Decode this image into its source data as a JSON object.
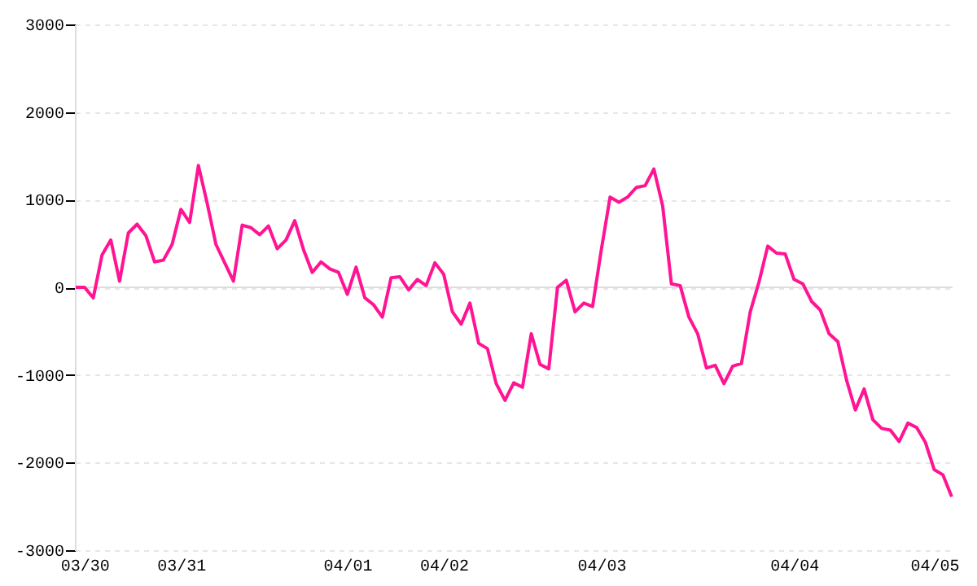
{
  "chart_data": {
    "type": "line",
    "categories": [
      null,
      "03/30",
      null,
      null,
      null,
      null,
      null,
      null,
      null,
      null,
      null,
      null,
      "03/31",
      null,
      null,
      null,
      null,
      null,
      null,
      null,
      null,
      null,
      null,
      null,
      null,
      null,
      null,
      null,
      null,
      null,
      null,
      "04/01",
      null,
      null,
      null,
      null,
      null,
      null,
      null,
      null,
      null,
      null,
      "04/02",
      null,
      null,
      null,
      null,
      null,
      null,
      null,
      null,
      null,
      null,
      null,
      null,
      null,
      null,
      null,
      null,
      null,
      "04/03",
      null,
      null,
      null,
      null,
      null,
      null,
      null,
      null,
      null,
      null,
      null,
      null,
      null,
      null,
      null,
      null,
      null,
      null,
      null,
      null,
      null,
      "04/04",
      null,
      null,
      null,
      null,
      null,
      null,
      null,
      null,
      null,
      null,
      null,
      null,
      null,
      null,
      null,
      "04/05",
      null,
      null
    ],
    "series": [
      {
        "color": "#ff1493",
        "values": [
          0,
          0,
          -120,
          370,
          540,
          70,
          620,
          720,
          590,
          290,
          310,
          490,
          890,
          740,
          1390,
          960,
          490,
          280,
          70,
          710,
          680,
          600,
          700,
          440,
          540,
          760,
          430,
          170,
          290,
          210,
          170,
          -80,
          230,
          -120,
          -200,
          -340,
          110,
          120,
          -30,
          90,
          20,
          280,
          150,
          -280,
          -420,
          -180,
          -640,
          -700,
          -1100,
          -1290,
          -1090,
          -1140,
          -530,
          -880,
          -930,
          0,
          80,
          -280,
          -180,
          -220,
          430,
          1030,
          970,
          1030,
          1140,
          1160,
          1350,
          930,
          40,
          20,
          -340,
          -530,
          -920,
          -890,
          -1100,
          -900,
          -870,
          -280,
          60,
          470,
          390,
          380,
          90,
          40,
          -160,
          -260,
          -530,
          -620,
          -1060,
          -1400,
          -1160,
          -1510,
          -1610,
          -1630,
          -1760,
          -1550,
          -1600,
          -1770,
          -2080,
          -2140,
          -2390
        ]
      }
    ],
    "ylim": [
      -3000,
      3000
    ],
    "yticks": [
      -3000,
      -2000,
      -1000,
      0,
      1000,
      2000,
      3000
    ],
    "grid": "y",
    "ref_lines": [
      {
        "axis": "y",
        "value": 0,
        "color": "#dddddd"
      }
    ],
    "marker": "none",
    "line_style": "solid"
  }
}
